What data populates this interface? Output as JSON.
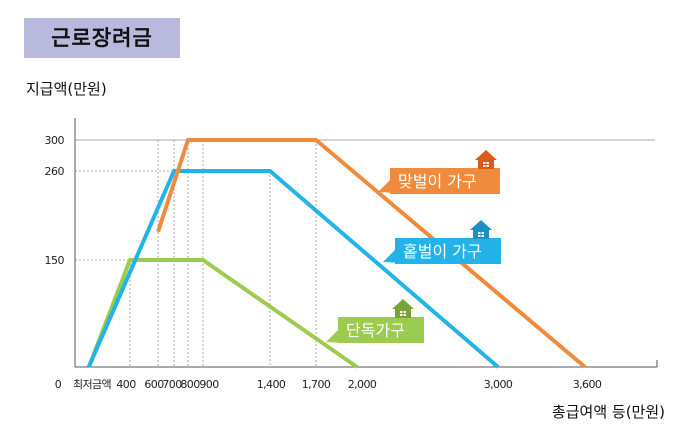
{
  "title": "근로장려금",
  "chart_data": {
    "type": "line",
    "ylabel": "지급액(만원)",
    "xlabel": "총급여액 등(만원)",
    "x_ticks": [
      "0",
      "최저금액",
      "400",
      "600",
      "700",
      "800",
      "900",
      "1,400",
      "1,700",
      "2,000",
      "3,000",
      "3,600"
    ],
    "y_ticks": [
      "300",
      "260",
      "150"
    ],
    "xlim": [
      0,
      3800
    ],
    "ylim": [
      0,
      300
    ],
    "series": [
      {
        "name": "맞벌이 가구",
        "color": "#f08a3c",
        "points": [
          [
            600,
            185
          ],
          [
            800,
            300
          ],
          [
            1700,
            300
          ],
          [
            3600,
            0
          ]
        ]
      },
      {
        "name": "홑벌이 가구",
        "color": "#24b3e8",
        "points": [
          [
            100,
            0
          ],
          [
            700,
            260
          ],
          [
            1400,
            260
          ],
          [
            3000,
            0
          ]
        ]
      },
      {
        "name": "단독가구",
        "color": "#9bcb4f",
        "points": [
          [
            100,
            0
          ],
          [
            400,
            150
          ],
          [
            900,
            150
          ],
          [
            2000,
            0
          ]
        ]
      }
    ]
  }
}
